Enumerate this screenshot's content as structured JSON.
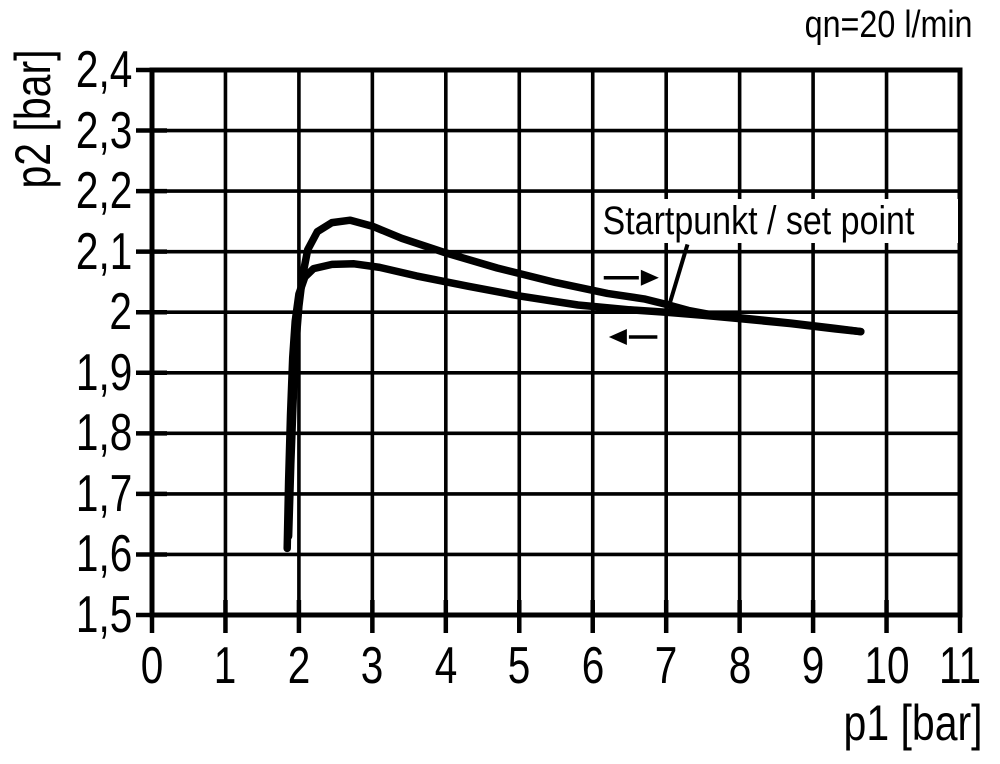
{
  "chart_data": {
    "type": "line",
    "condition_label": "qn=20 l/min",
    "xlabel": "p1 [bar]",
    "ylabel": "p2 [bar]",
    "xlim": [
      0,
      11
    ],
    "ylim": [
      1.5,
      2.4
    ],
    "grid": true,
    "decimal_separator": ",",
    "x_ticks": [
      0,
      1,
      2,
      3,
      4,
      5,
      6,
      7,
      8,
      9,
      10,
      11
    ],
    "x_tick_labels": [
      "0",
      "1",
      "2",
      "3",
      "4",
      "5",
      "6",
      "7",
      "8",
      "9",
      "10",
      "11"
    ],
    "y_ticks": [
      2.4,
      2.3,
      2.2,
      2.1,
      2.0,
      1.9,
      1.8,
      1.7,
      1.6,
      1.5
    ],
    "y_tick_labels": [
      "2,4",
      "2,3",
      "2,2",
      "2,1",
      "2",
      "1,9",
      "1,8",
      "1,7",
      "1,6",
      "1,5"
    ],
    "annotation": {
      "text": "Startpunkt / set point",
      "points_to": [
        7.03,
        2.005
      ],
      "leader_line": {
        "from": [
          7.29,
          2.112
        ],
        "to": [
          7.03,
          2.007
        ]
      }
    },
    "series": [
      {
        "name": "upper branch (direction of increasing traversal, arrow right)",
        "direction": "right",
        "points": [
          [
            1.86,
            1.63
          ],
          [
            1.89,
            1.75
          ],
          [
            1.925,
            1.865
          ],
          [
            1.96,
            1.95
          ],
          [
            2.0,
            2.01
          ],
          [
            2.05,
            2.06
          ],
          [
            2.12,
            2.103
          ],
          [
            2.25,
            2.133
          ],
          [
            2.45,
            2.148
          ],
          [
            2.7,
            2.152
          ],
          [
            3.0,
            2.142
          ],
          [
            3.4,
            2.122
          ],
          [
            4.0,
            2.098
          ],
          [
            4.7,
            2.073
          ],
          [
            5.5,
            2.049
          ],
          [
            6.2,
            2.031
          ],
          [
            6.7,
            2.022
          ],
          [
            7.0,
            2.013
          ],
          [
            7.3,
            2.003
          ],
          [
            7.6,
            1.996
          ],
          [
            8.0,
            1.991
          ],
          [
            8.7,
            1.982
          ],
          [
            9.3,
            1.9735
          ],
          [
            9.65,
            1.968
          ]
        ]
      },
      {
        "name": "lower branch (return traversal, arrow left)",
        "direction": "left",
        "points": [
          [
            1.84,
            1.61
          ],
          [
            1.86,
            1.72
          ],
          [
            1.885,
            1.83
          ],
          [
            1.915,
            1.925
          ],
          [
            1.95,
            1.985
          ],
          [
            2.0,
            2.03
          ],
          [
            2.08,
            2.058
          ],
          [
            2.2,
            2.072
          ],
          [
            2.45,
            2.079
          ],
          [
            2.75,
            2.08
          ],
          [
            3.1,
            2.074
          ],
          [
            3.6,
            2.06
          ],
          [
            4.3,
            2.043
          ],
          [
            5.0,
            2.027
          ],
          [
            5.8,
            2.012
          ],
          [
            6.5,
            2.004
          ],
          [
            7.0,
            2.0
          ],
          [
            7.5,
            1.995
          ],
          [
            8.0,
            1.9895
          ],
          [
            8.7,
            1.981
          ],
          [
            9.3,
            1.9725
          ],
          [
            9.65,
            1.968
          ]
        ]
      }
    ],
    "arrows": [
      {
        "direction": "right",
        "from": [
          6.15,
          2.057
        ],
        "to": [
          6.9,
          2.057
        ]
      },
      {
        "direction": "left",
        "from": [
          6.88,
          1.959
        ],
        "to": [
          6.22,
          1.959
        ]
      }
    ]
  }
}
